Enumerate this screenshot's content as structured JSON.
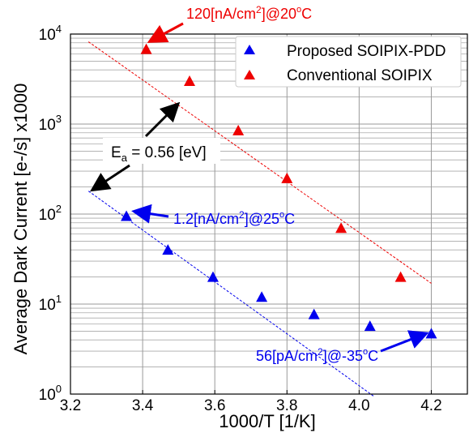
{
  "chart_data": {
    "type": "scatter",
    "xlabel": "1000/T [1/K]",
    "ylabel": "Average Dark Current [e-/s] x1000",
    "xlim": [
      3.2,
      4.3
    ],
    "ylim": [
      1,
      10000
    ],
    "yscale": "log",
    "grid": true,
    "legend_position": "top-right",
    "x_ticks": [
      "3.2",
      "3.4",
      "3.6",
      "3.8",
      "4.0",
      "4.2"
    ],
    "y_ticks": [
      {
        "base": "10",
        "exp": "0",
        "value": 1
      },
      {
        "base": "10",
        "exp": "1",
        "value": 10
      },
      {
        "base": "10",
        "exp": "2",
        "value": 100
      },
      {
        "base": "10",
        "exp": "3",
        "value": 1000
      },
      {
        "base": "10",
        "exp": "4",
        "value": 10000
      }
    ],
    "series": [
      {
        "name": "Proposed SOIPIX-PDD",
        "color": "#0000ee",
        "marker": "triangle",
        "x": [
          3.355,
          3.47,
          3.595,
          3.73,
          3.875,
          4.03,
          4.2
        ],
        "y": [
          95,
          40,
          20,
          12,
          7.7,
          5.7,
          4.7
        ],
        "fit": {
          "x": [
            3.25,
            4.04
          ],
          "y": [
            180,
            0.95
          ]
        }
      },
      {
        "name": "Conventional SOIPIX",
        "color": "#ee0000",
        "marker": "triangle",
        "x": [
          3.41,
          3.53,
          3.665,
          3.8,
          3.95,
          4.115
        ],
        "y": [
          6800,
          3000,
          850,
          250,
          70,
          20
        ],
        "fit": {
          "x": [
            3.25,
            4.2
          ],
          "y": [
            8200,
            17
          ]
        }
      }
    ],
    "annotations": [
      {
        "key": "red",
        "color": "#ee0000",
        "text": "120[nA/cm",
        "sup": "2",
        "tail": "]@20",
        "deg": "o",
        "unit": "C"
      },
      {
        "key": "blue1",
        "color": "#0000ee",
        "text": "1.2[nA/cm",
        "sup": "2",
        "tail": "]@25",
        "deg": "o",
        "unit": "C"
      },
      {
        "key": "blue2",
        "color": "#0000ee",
        "text": "56[pA/cm",
        "sup": "2",
        "tail": "]@-35",
        "deg": "o",
        "unit": "C"
      },
      {
        "key": "ea",
        "color": "#000000",
        "text": "E",
        "sub": "a",
        "tail": " = 0.56 [eV]"
      }
    ]
  }
}
